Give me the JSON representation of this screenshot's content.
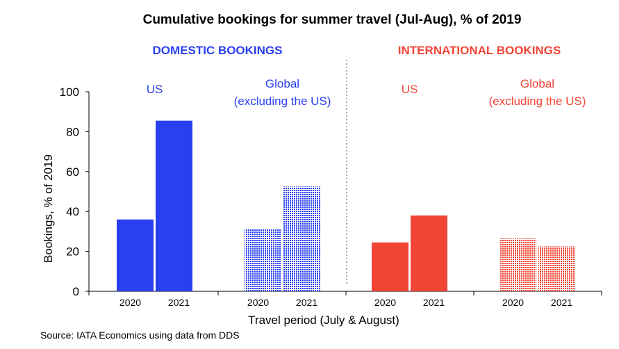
{
  "chart_data": {
    "type": "bar",
    "title": "Cumulative bookings for summer travel (Jul-Aug), % of 2019",
    "xlabel": "Travel period (July & August)",
    "ylabel": "Bookings, % of 2019",
    "ylim": [
      0,
      100
    ],
    "yticks": [
      "0",
      "20",
      "40",
      "60",
      "80",
      "100"
    ],
    "grid": false,
    "source": "Source: IATA Economics using data from DDS",
    "colors": {
      "domestic": "#2a3ff0",
      "international": "#f04535"
    },
    "panels": [
      {
        "label": "DOMESTIC BOOKINGS",
        "color": "domestic"
      },
      {
        "label": "INTERNATIONAL BOOKINGS",
        "color": "international"
      }
    ],
    "groups": [
      {
        "label": "US",
        "panel": 0,
        "hatched": false,
        "categories": [
          "2020",
          "2021"
        ],
        "values": [
          36,
          85.5
        ]
      },
      {
        "label": "Global\n(excluding the US)",
        "panel": 0,
        "hatched": true,
        "categories": [
          "2020",
          "2021"
        ],
        "values": [
          31,
          52.5
        ]
      },
      {
        "label": "US",
        "panel": 1,
        "hatched": false,
        "categories": [
          "2020",
          "2021"
        ],
        "values": [
          24.5,
          38
        ]
      },
      {
        "label": "Global\n(excluding the US)",
        "panel": 1,
        "hatched": true,
        "categories": [
          "2020",
          "2021"
        ],
        "values": [
          26.5,
          22.5
        ]
      }
    ]
  }
}
